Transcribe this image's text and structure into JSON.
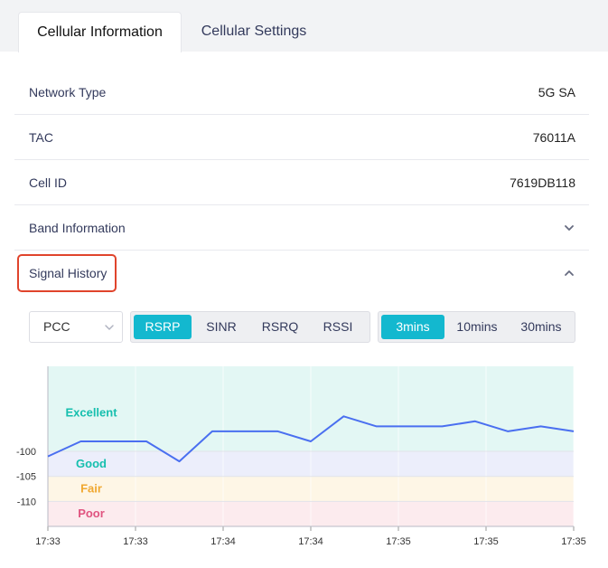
{
  "tabs": [
    {
      "label": "Cellular Information",
      "active": true
    },
    {
      "label": "Cellular Settings",
      "active": false
    }
  ],
  "info_rows": [
    {
      "label": "Network Type",
      "value": "5G SA"
    },
    {
      "label": "TAC",
      "value": "76011A"
    },
    {
      "label": "Cell ID",
      "value": "7619DB118"
    }
  ],
  "band_information": {
    "label": "Band Information",
    "icon": "chevron-down-icon",
    "expanded": false
  },
  "signal_history": {
    "label": "Signal History",
    "icon": "chevron-up-icon",
    "expanded": true
  },
  "controls": {
    "carrier_select": {
      "value": "PCC"
    },
    "metric_options": [
      "RSRP",
      "SINR",
      "RSRQ",
      "RSSI"
    ],
    "metric_selected": "RSRP",
    "range_options": [
      "3mins",
      "10mins",
      "30mins"
    ],
    "range_selected": "3mins"
  },
  "colors": {
    "accent": "#13b8cf",
    "line": "#4a6ff0",
    "highlight": "#e0442c"
  },
  "chart_data": {
    "type": "line",
    "x_ticks": [
      "17:33",
      "17:33",
      "17:34",
      "17:34",
      "17:35",
      "17:35",
      "17:35"
    ],
    "y_ticks": [
      -100,
      -105,
      -110
    ],
    "ylim": [
      -115,
      -83
    ],
    "bands": [
      {
        "label": "Excellent",
        "from": -100,
        "to": -83,
        "color": "#e3f7f4",
        "text_color": "#16bfae"
      },
      {
        "label": "Good",
        "from": -105,
        "to": -100,
        "color": "#eceefb",
        "text_color": "#16bfae"
      },
      {
        "label": "Fair",
        "from": -110,
        "to": -105,
        "color": "#fef6e6",
        "text_color": "#f0a830"
      },
      {
        "label": "Poor",
        "from": -115,
        "to": -110,
        "color": "#fcebee",
        "text_color": "#e05480"
      }
    ],
    "series": [
      {
        "values": [
          -101,
          -98,
          -98,
          -98,
          -102,
          -96,
          -96,
          -96,
          -98,
          -93,
          -95,
          -95,
          -95,
          -94,
          -96,
          -95,
          -96
        ]
      }
    ]
  }
}
